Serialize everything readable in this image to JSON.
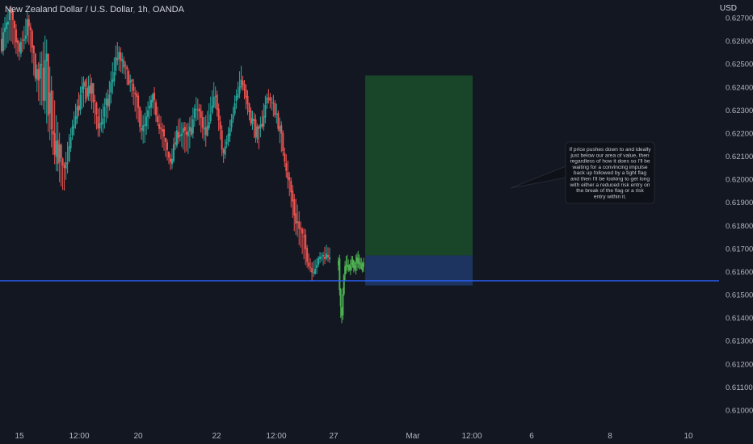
{
  "header": {
    "symbol": "New Zealand Dollar / U.S. Dollar",
    "interval": "1h",
    "source": "OANDA",
    "currency": "USD"
  },
  "annotation": {
    "lines": [
      "If price pushes down to and ideally",
      "just below our area of value, then",
      "regardless of how it does so I'll be",
      "waiting for a convincing impulse",
      "back up followed by a tight flag",
      "and then I'll be looking to get long",
      "with either a reduced risk entry on",
      "the break of the flag or a risk",
      "entry within it."
    ]
  },
  "colors": {
    "background": "#131722",
    "up_candle": "#26a69a",
    "down_candle": "#ef5350",
    "projection_candle": "#4caf50",
    "support_line": "#2962ff",
    "target_zone": "#1b4d2a",
    "stop_zone": "#1e3766"
  },
  "chart_data": {
    "type": "candlestick",
    "y_axis": {
      "range": [
        0.6095,
        0.6275
      ],
      "ticks": [
        "0.62700",
        "0.62600",
        "0.62500",
        "0.62400",
        "0.62300",
        "0.62200",
        "0.62100",
        "0.62000",
        "0.61900",
        "0.61800",
        "0.61700",
        "0.61600",
        "0.61500",
        "0.61400",
        "0.61300",
        "0.61200",
        "0.61100",
        "0.61000"
      ]
    },
    "x_axis": {
      "ticks": [
        "15",
        "12:00",
        "20",
        "22",
        "12:00",
        "27",
        "Mar",
        "12:00",
        "6",
        "8",
        "10"
      ]
    },
    "support_level": 0.6156,
    "long_position": {
      "entry": 0.6167,
      "stop": 0.6154,
      "target": 0.6245
    },
    "segments": [
      {
        "name": "history",
        "anchors": [
          [
            0.6265,
            0.6255
          ],
          [
            0.6275,
            0.6262
          ],
          [
            0.6258,
            0.6252
          ],
          [
            0.6272,
            0.6262
          ],
          [
            0.6248,
            0.6238
          ],
          [
            0.6262,
            0.6228
          ],
          [
            0.6232,
            0.6208
          ],
          [
            0.6205,
            0.6195
          ],
          [
            0.6225,
            0.6218
          ],
          [
            0.6242,
            0.6232
          ],
          [
            0.6245,
            0.6235
          ],
          [
            0.6228,
            0.6218
          ],
          [
            0.6238,
            0.6228
          ],
          [
            0.6258,
            0.625
          ],
          [
            0.625,
            0.6245
          ],
          [
            0.624,
            0.6232
          ],
          [
            0.6225,
            0.6215
          ],
          [
            0.6238,
            0.6232
          ],
          [
            0.6225,
            0.6218
          ],
          [
            0.621,
            0.6205
          ],
          [
            0.6225,
            0.6218
          ],
          [
            0.6222,
            0.6212
          ],
          [
            0.6235,
            0.6228
          ],
          [
            0.6225,
            0.6215
          ],
          [
            0.6242,
            0.6236
          ],
          [
            0.6212,
            0.6208
          ],
          [
            0.6228,
            0.6222
          ],
          [
            0.6248,
            0.6243
          ],
          [
            0.6232,
            0.6225
          ],
          [
            0.6222,
            0.6214
          ],
          [
            0.6238,
            0.6235
          ],
          [
            0.6232,
            0.6225
          ],
          [
            0.6212,
            0.6205
          ],
          [
            0.6192,
            0.618
          ],
          [
            0.6178,
            0.6168
          ],
          [
            0.6162,
            0.6158
          ],
          [
            0.6168,
            0.6165
          ],
          [
            0.617,
            0.6165
          ]
        ]
      },
      {
        "name": "projection",
        "anchors": [
          [
            0.6165,
            0.6162
          ],
          [
            0.614,
            0.6135
          ],
          [
            0.616,
            0.6156
          ],
          [
            0.6168,
            0.6162
          ],
          [
            0.6162,
            0.616
          ],
          [
            0.6166,
            0.6162
          ],
          [
            0.6164,
            0.616
          ],
          [
            0.6168,
            0.6163
          ],
          [
            0.6163,
            0.6161
          ],
          [
            0.6165,
            0.6162
          ]
        ]
      }
    ]
  }
}
